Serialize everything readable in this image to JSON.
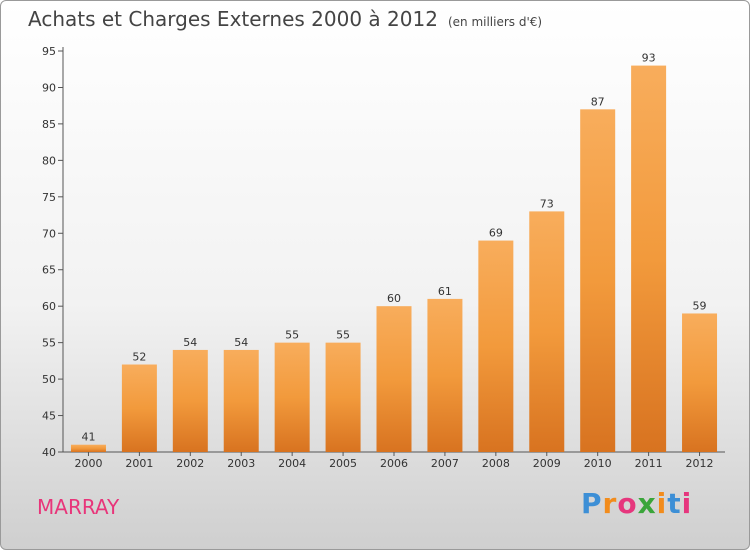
{
  "header": {
    "title": "Achats et Charges Externes 2000 à 2012",
    "unit": "(en milliers d'€)"
  },
  "footer": {
    "commune": "MARRAY",
    "logo_letters": [
      "P",
      "r",
      "o",
      "x",
      "i",
      "t",
      "i"
    ],
    "logo_colors": [
      "#3d8fd6",
      "#f28c1c",
      "#e6367d",
      "#3aa53a",
      "#f28c1c",
      "#3d8fd6",
      "#e6367d"
    ]
  },
  "colors": {
    "bar": "#f29a3c",
    "bar_light": "#f8ad5c",
    "bar_dark": "#d87320",
    "commune": "#e8357a"
  },
  "chart_data": {
    "type": "bar",
    "categories": [
      "2000",
      "2001",
      "2002",
      "2003",
      "2004",
      "2005",
      "2006",
      "2007",
      "2008",
      "2009",
      "2010",
      "2011",
      "2012"
    ],
    "values": [
      41,
      52,
      54,
      54,
      55,
      55,
      60,
      61,
      69,
      73,
      87,
      93,
      59
    ],
    "title": "Achats et Charges Externes 2000 à 2012",
    "ylim": [
      40,
      95
    ],
    "yticks": [
      40,
      45,
      50,
      55,
      60,
      65,
      70,
      75,
      80,
      85,
      90,
      95
    ],
    "grid": false,
    "legend": "none"
  }
}
